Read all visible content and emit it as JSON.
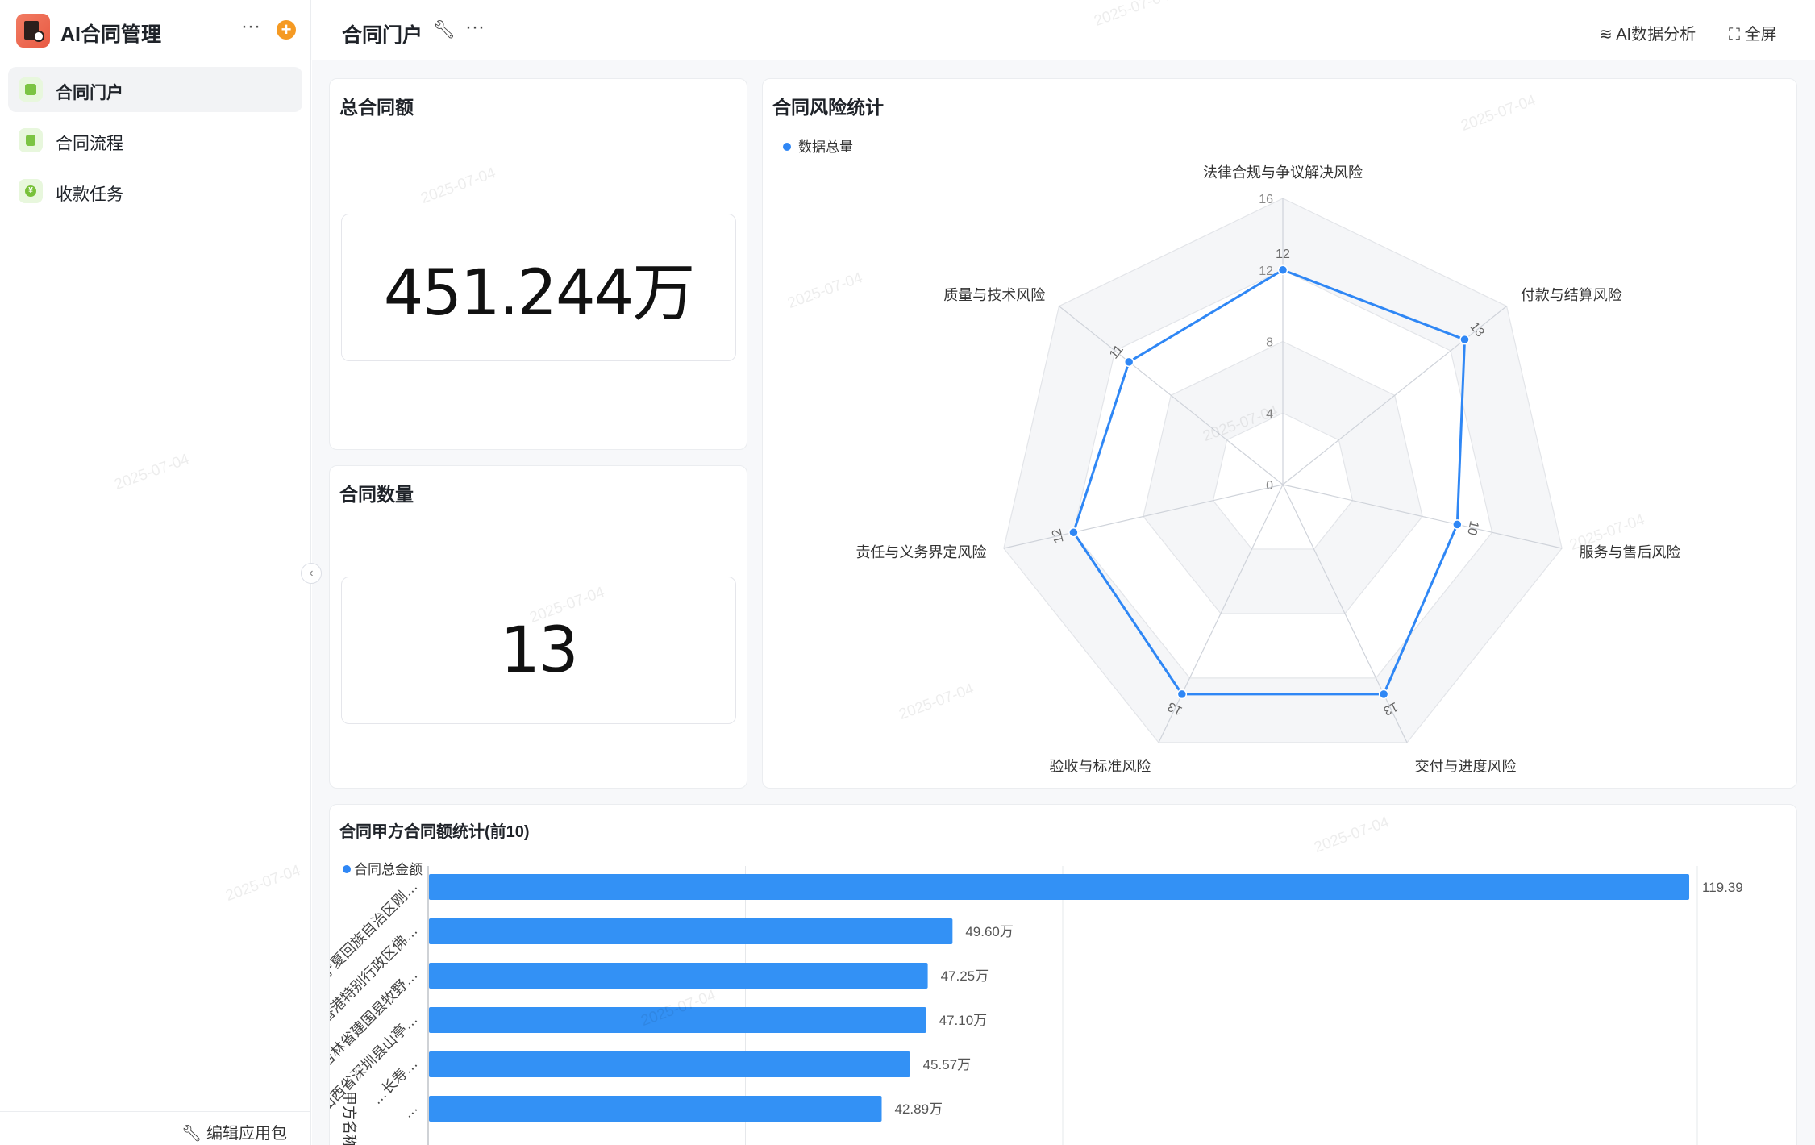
{
  "app": {
    "title": "AI合同管理",
    "more_icon": "more-icon",
    "add_icon": "plus-icon"
  },
  "sidebar": {
    "items": [
      {
        "label": "合同门户",
        "icon": "portal-icon",
        "active": true
      },
      {
        "label": "合同流程",
        "icon": "document-icon",
        "active": false
      },
      {
        "label": "收款任务",
        "icon": "yuan-icon",
        "active": false
      }
    ],
    "footer_label": "编辑应用包"
  },
  "header": {
    "title": "合同门户",
    "ai_label": "AI数据分析",
    "fullscreen_label": "全屏"
  },
  "watermark": "2025-07-04",
  "kpis": {
    "total_amount": {
      "title": "总合同额",
      "value": "451.244万"
    },
    "contract_count": {
      "title": "合同数量",
      "value": "13"
    }
  },
  "risk_chart": {
    "title": "合同风险统计",
    "legend": "数据总量",
    "color": "#2f87f5"
  },
  "bar_chart": {
    "title": "合同甲方合同额统计(前10)",
    "legend": "合同总金额",
    "axis_label": "甲方名称",
    "color": "#3391f5"
  },
  "chart_data": [
    {
      "type": "radar",
      "title": "合同风险统计",
      "legend": [
        "数据总量"
      ],
      "categories": [
        "法律合规与争议解决风险",
        "付款与结算风险",
        "服务与售后风险",
        "交付与进度风险",
        "验收与标准风险",
        "责任与义务界定风险",
        "质量与技术风险"
      ],
      "series": [
        {
          "name": "数据总量",
          "values": [
            12,
            13,
            10,
            13,
            13,
            12,
            11
          ]
        }
      ],
      "rlim": [
        0,
        16
      ],
      "ticks": [
        0,
        4,
        8,
        12,
        16
      ]
    },
    {
      "type": "bar",
      "orientation": "horizontal",
      "title": "合同甲方合同额统计(前10)",
      "legend": [
        "合同总金额"
      ],
      "ylabel": "甲方名称",
      "categories": [
        "宁夏回族自治区刚…",
        "香港特别行政区佛…",
        "吉林省建国县牧野…",
        "山西省深圳县山亭…",
        "…长寿…",
        "…"
      ],
      "values": [
        119.39,
        49.6,
        47.25,
        47.1,
        45.57,
        42.89
      ],
      "value_labels": [
        "119.39",
        "49.60万",
        "47.25万",
        "47.10万",
        "45.57万",
        "42.89万"
      ]
    }
  ]
}
